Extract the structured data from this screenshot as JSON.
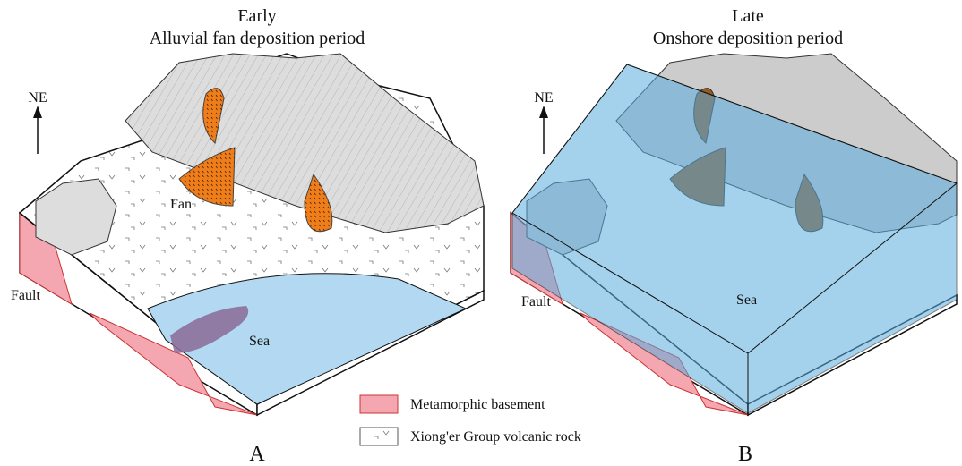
{
  "panels": [
    {
      "title": "Early",
      "subtitle": "Alluvial fan deposition period",
      "north": "NE",
      "labels": [
        "Fan",
        "Fault",
        "Sea"
      ],
      "panel_label": "A"
    },
    {
      "title": "Late",
      "subtitle": "Onshore deposition period",
      "north": "NE",
      "labels": [
        "Fault",
        "Sea"
      ],
      "panel_label": "B"
    }
  ],
  "legend": [
    {
      "label": "Metamorphic basement"
    },
    {
      "label": "Xiong'er Group volcanic rock"
    }
  ]
}
